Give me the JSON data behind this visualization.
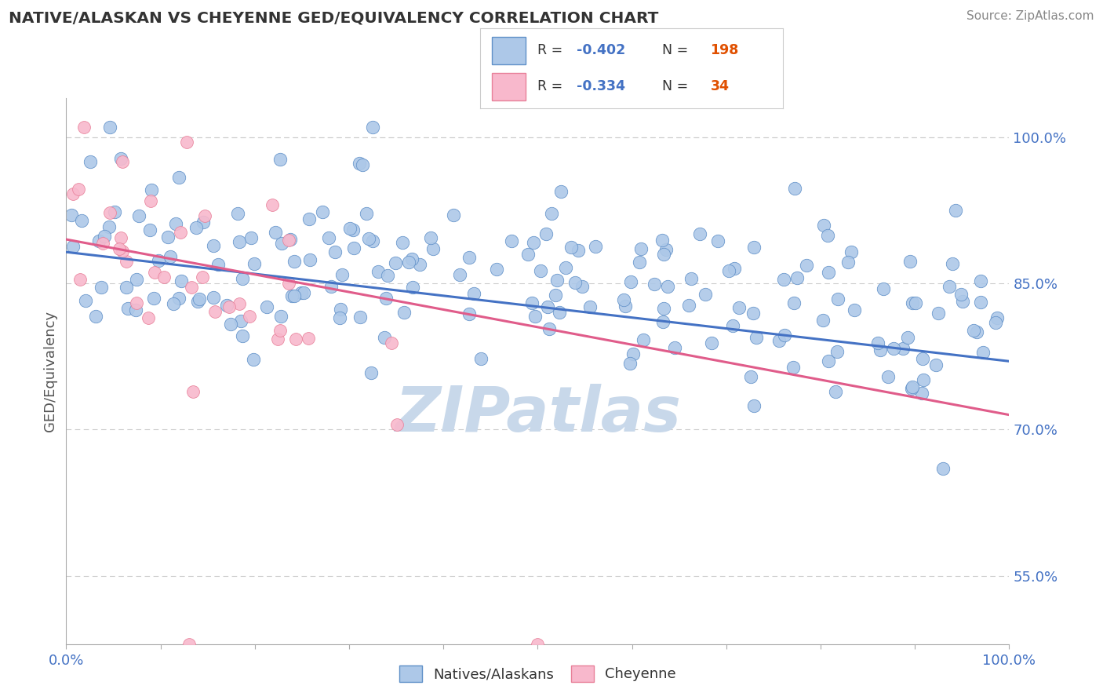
{
  "title": "NATIVE/ALASKAN VS CHEYENNE GED/EQUIVALENCY CORRELATION CHART",
  "source": "Source: ZipAtlas.com",
  "ylabel": "GED/Equivalency",
  "yticks": [
    0.55,
    0.7,
    0.85,
    1.0
  ],
  "ytick_labels": [
    "55.0%",
    "70.0%",
    "85.0%",
    "100.0%"
  ],
  "xmin": 0.0,
  "xmax": 1.0,
  "ymin": 0.48,
  "ymax": 1.04,
  "blue_R": -0.402,
  "blue_N": 198,
  "pink_R": -0.334,
  "pink_N": 34,
  "blue_color": "#adc8e8",
  "blue_edge_color": "#6090c8",
  "blue_line_color": "#4472c4",
  "pink_color": "#f8b8cc",
  "pink_edge_color": "#e88099",
  "pink_line_color": "#e05c8a",
  "legend_label_blue": "Natives/Alaskans",
  "legend_label_pink": "Cheyenne",
  "blue_line_start_y": 0.882,
  "blue_line_end_y": 0.77,
  "pink_line_start_y": 0.895,
  "pink_line_end_y": 0.715,
  "watermark": "ZIPatlas",
  "watermark_color": "#c8d8ea",
  "background_color": "#ffffff",
  "grid_color": "#cccccc",
  "title_color": "#333333",
  "axis_label_color": "#4472c4",
  "r_text_color": "#4472c4",
  "n_text_color": "#e05000",
  "seed": 42
}
